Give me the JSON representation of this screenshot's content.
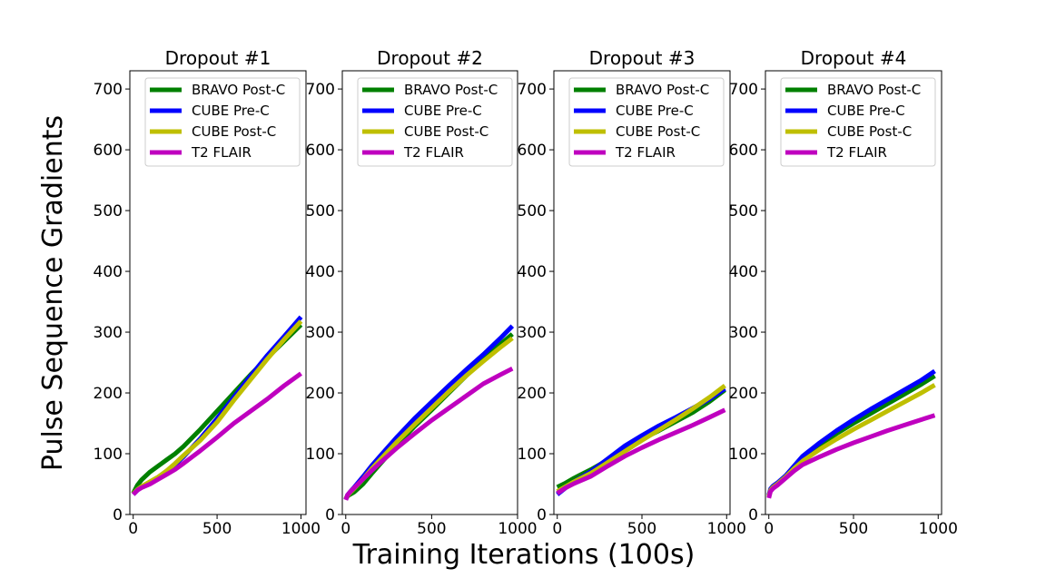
{
  "figure": {
    "xlabel": "Training Iterations (100s)",
    "ylabel": "Pulse Sequence Gradients"
  },
  "chart_data": [
    {
      "type": "line",
      "title": "Dropout #1",
      "xlim": [
        -20,
        1030
      ],
      "ylim": [
        0,
        730
      ],
      "xticks": [
        0,
        500,
        1000
      ],
      "yticks": [
        0,
        100,
        200,
        300,
        400,
        500,
        600,
        700
      ],
      "legend": "top-right",
      "grid": false,
      "series": [
        {
          "name": "BRAVO Post-C",
          "color": "#008000",
          "x": [
            0,
            25,
            50,
            100,
            150,
            200,
            250,
            300,
            400,
            500,
            600,
            700,
            800,
            900,
            1000
          ],
          "y": [
            35,
            48,
            57,
            70,
            80,
            90,
            100,
            112,
            140,
            170,
            200,
            230,
            258,
            285,
            312
          ]
        },
        {
          "name": "CUBE Pre-C",
          "color": "#0000ff",
          "x": [
            0,
            25,
            50,
            100,
            150,
            200,
            250,
            300,
            400,
            500,
            600,
            700,
            800,
            900,
            1000
          ],
          "y": [
            33,
            40,
            45,
            52,
            60,
            70,
            82,
            95,
            125,
            158,
            193,
            228,
            262,
            293,
            325
          ]
        },
        {
          "name": "CUBE Post-C",
          "color": "#bfbf00",
          "x": [
            0,
            25,
            50,
            100,
            150,
            200,
            250,
            300,
            400,
            500,
            600,
            700,
            800,
            900,
            1000
          ],
          "y": [
            34,
            41,
            46,
            54,
            62,
            72,
            84,
            97,
            122,
            152,
            188,
            222,
            256,
            288,
            318
          ]
        },
        {
          "name": "T2 FLAIR",
          "color": "#bf00bf",
          "x": [
            0,
            25,
            50,
            100,
            150,
            200,
            250,
            300,
            400,
            500,
            600,
            700,
            800,
            900,
            1000
          ],
          "y": [
            33,
            40,
            44,
            50,
            58,
            66,
            74,
            84,
            105,
            127,
            150,
            170,
            190,
            212,
            232
          ]
        }
      ]
    },
    {
      "type": "line",
      "title": "Dropout #2",
      "xlim": [
        -20,
        1000
      ],
      "ylim": [
        0,
        730
      ],
      "xticks": [
        0,
        500,
        1000
      ],
      "yticks": [
        0,
        100,
        200,
        300,
        400,
        500,
        600,
        700
      ],
      "legend": "top-right",
      "grid": false,
      "series": [
        {
          "name": "BRAVO Post-C",
          "color": "#008000",
          "x": [
            0,
            10,
            25,
            50,
            100,
            150,
            200,
            300,
            400,
            500,
            600,
            700,
            800,
            900,
            970
          ],
          "y": [
            25,
            30,
            33,
            37,
            50,
            67,
            83,
            115,
            145,
            172,
            200,
            228,
            255,
            280,
            297
          ]
        },
        {
          "name": "CUBE Pre-C",
          "color": "#0000ff",
          "x": [
            0,
            10,
            25,
            50,
            100,
            150,
            200,
            300,
            400,
            500,
            600,
            700,
            800,
            900,
            970
          ],
          "y": [
            25,
            32,
            37,
            45,
            62,
            80,
            96,
            128,
            158,
            185,
            212,
            238,
            263,
            290,
            310
          ]
        },
        {
          "name": "CUBE Post-C",
          "color": "#bfbf00",
          "x": [
            0,
            10,
            25,
            50,
            100,
            150,
            200,
            300,
            400,
            500,
            600,
            700,
            800,
            900,
            970
          ],
          "y": [
            26,
            31,
            36,
            43,
            58,
            75,
            90,
            120,
            148,
            175,
            202,
            228,
            252,
            275,
            290
          ]
        },
        {
          "name": "T2 FLAIR",
          "color": "#bf00bf",
          "x": [
            0,
            10,
            25,
            50,
            100,
            150,
            200,
            300,
            400,
            500,
            600,
            700,
            800,
            900,
            970
          ],
          "y": [
            24,
            32,
            37,
            44,
            58,
            72,
            85,
            110,
            133,
            155,
            175,
            195,
            215,
            230,
            240
          ]
        }
      ]
    },
    {
      "type": "line",
      "title": "Dropout #3",
      "xlim": [
        -20,
        1020
      ],
      "ylim": [
        0,
        730
      ],
      "xticks": [
        0,
        500,
        1000
      ],
      "yticks": [
        0,
        100,
        200,
        300,
        400,
        500,
        600,
        700
      ],
      "legend": "top-right",
      "grid": false,
      "series": [
        {
          "name": "BRAVO Post-C",
          "color": "#008000",
          "x": [
            0,
            50,
            100,
            200,
            300,
            400,
            500,
            600,
            700,
            800,
            900,
            990
          ],
          "y": [
            45,
            52,
            60,
            74,
            90,
            107,
            124,
            138,
            153,
            168,
            186,
            205
          ]
        },
        {
          "name": "CUBE Pre-C",
          "color": "#0000ff",
          "x": [
            0,
            50,
            100,
            200,
            300,
            400,
            500,
            600,
            700,
            800,
            900,
            990
          ],
          "y": [
            33,
            44,
            54,
            71,
            92,
            113,
            130,
            146,
            160,
            175,
            190,
            207
          ]
        },
        {
          "name": "CUBE Post-C",
          "color": "#bfbf00",
          "x": [
            0,
            50,
            100,
            200,
            300,
            400,
            500,
            600,
            700,
            800,
            900,
            990
          ],
          "y": [
            38,
            46,
            54,
            68,
            86,
            104,
            122,
            139,
            156,
            174,
            193,
            212
          ]
        },
        {
          "name": "T2 FLAIR",
          "color": "#bf00bf",
          "x": [
            0,
            50,
            100,
            200,
            300,
            400,
            500,
            600,
            700,
            800,
            900,
            990
          ],
          "y": [
            35,
            44,
            51,
            63,
            80,
            96,
            110,
            123,
            135,
            147,
            160,
            172
          ]
        }
      ]
    },
    {
      "type": "line",
      "title": "Dropout #4",
      "xlim": [
        -20,
        1020
      ],
      "ylim": [
        0,
        730
      ],
      "xticks": [
        0,
        500,
        1000
      ],
      "yticks": [
        0,
        100,
        200,
        300,
        400,
        500,
        600,
        700
      ],
      "legend": "top-right",
      "grid": false,
      "series": [
        {
          "name": "BRAVO Post-C",
          "color": "#008000",
          "x": [
            0,
            10,
            25,
            50,
            100,
            150,
            200,
            300,
            400,
            500,
            600,
            700,
            800,
            900,
            980
          ],
          "y": [
            30,
            40,
            45,
            50,
            62,
            78,
            94,
            115,
            133,
            150,
            166,
            182,
            198,
            214,
            228
          ]
        },
        {
          "name": "CUBE Pre-C",
          "color": "#0000ff",
          "x": [
            0,
            10,
            25,
            50,
            100,
            150,
            200,
            300,
            400,
            500,
            600,
            700,
            800,
            900,
            980
          ],
          "y": [
            32,
            42,
            47,
            52,
            64,
            80,
            96,
            118,
            138,
            156,
            173,
            189,
            205,
            221,
            236
          ]
        },
        {
          "name": "CUBE Post-C",
          "color": "#bfbf00",
          "x": [
            0,
            10,
            25,
            50,
            100,
            150,
            200,
            300,
            400,
            500,
            600,
            700,
            800,
            900,
            980
          ],
          "y": [
            30,
            40,
            45,
            50,
            62,
            76,
            88,
            107,
            124,
            140,
            155,
            170,
            185,
            200,
            213
          ]
        },
        {
          "name": "T2 FLAIR",
          "color": "#bf00bf",
          "x": [
            0,
            10,
            25,
            50,
            100,
            150,
            200,
            300,
            400,
            500,
            600,
            700,
            800,
            900,
            980
          ],
          "y": [
            27,
            38,
            43,
            48,
            60,
            72,
            82,
            95,
            107,
            118,
            128,
            138,
            147,
            156,
            163
          ]
        }
      ]
    }
  ]
}
